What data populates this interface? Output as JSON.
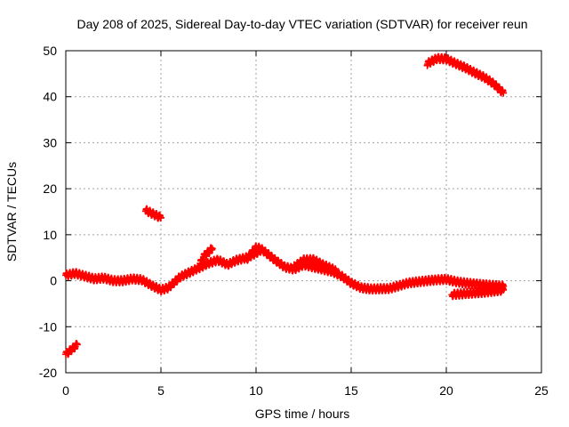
{
  "chart_data": {
    "type": "scatter",
    "title": "Day 208 of 2025, Sidereal Day-to-day VTEC variation (SDTVAR) for receiver reun",
    "xlabel": "GPS time / hours",
    "ylabel": "SDTVAR / TECUs",
    "xlim": [
      0,
      25
    ],
    "ylim": [
      -20,
      50
    ],
    "xticks": [
      0,
      5,
      10,
      15,
      20,
      25
    ],
    "yticks": [
      -20,
      -10,
      0,
      10,
      20,
      30,
      40,
      50
    ],
    "grid": true,
    "marker": "plus",
    "series_color": "#ff0000",
    "series": [
      {
        "name": "SDTVAR",
        "segments": [
          [
            [
              0.0,
              -16.0
            ],
            [
              0.2,
              -15.3
            ],
            [
              0.4,
              -14.6
            ],
            [
              0.6,
              -13.9
            ]
          ],
          [
            [
              0.0,
              1.2
            ],
            [
              0.5,
              1.6
            ],
            [
              1.0,
              1.0
            ],
            [
              1.5,
              0.4
            ],
            [
              2.0,
              0.6
            ],
            [
              2.5,
              0.0
            ],
            [
              3.0,
              0.0
            ],
            [
              3.5,
              0.4
            ],
            [
              4.0,
              0.2
            ],
            [
              4.5,
              -1.0
            ],
            [
              5.0,
              -2.0
            ],
            [
              5.4,
              -1.5
            ],
            [
              6.0,
              0.8
            ],
            [
              6.5,
              1.8
            ],
            [
              7.0,
              2.8
            ],
            [
              7.5,
              3.8
            ],
            [
              8.0,
              4.5
            ],
            [
              8.5,
              3.5
            ],
            [
              9.0,
              4.5
            ],
            [
              9.5,
              5.0
            ],
            [
              10.0,
              6.0
            ],
            [
              10.3,
              6.8
            ],
            [
              10.7,
              5.5
            ],
            [
              11.0,
              4.5
            ],
            [
              11.5,
              3.0
            ],
            [
              12.0,
              2.5
            ],
            [
              12.5,
              3.5
            ],
            [
              13.0,
              3.0
            ],
            [
              13.5,
              2.5
            ],
            [
              14.0,
              2.0
            ],
            [
              14.5,
              1.0
            ],
            [
              15.0,
              -0.5
            ],
            [
              15.5,
              -1.5
            ],
            [
              16.0,
              -1.8
            ],
            [
              17.0,
              -1.7
            ],
            [
              18.0,
              -0.5
            ],
            [
              19.0,
              0.0
            ],
            [
              19.5,
              0.2
            ],
            [
              20.0,
              0.3
            ],
            [
              20.5,
              -0.2
            ],
            [
              21.0,
              -0.5
            ],
            [
              22.0,
              -0.9
            ],
            [
              23.0,
              -1.2
            ]
          ],
          [
            [
              7.0,
              3.2
            ],
            [
              7.3,
              5.5
            ],
            [
              7.7,
              7.0
            ]
          ],
          [
            [
              9.5,
              4.6
            ],
            [
              10.0,
              7.2
            ],
            [
              10.2,
              7.0
            ]
          ],
          [
            [
              12.0,
              3.0
            ],
            [
              12.5,
              4.5
            ],
            [
              13.0,
              4.6
            ],
            [
              13.5,
              3.5
            ],
            [
              14.2,
              2.2
            ]
          ],
          [
            [
              20.3,
              -3.0
            ],
            [
              21.0,
              -2.8
            ],
            [
              22.0,
              -2.5
            ],
            [
              23.0,
              -2.0
            ]
          ],
          [
            [
              4.2,
              15.3
            ],
            [
              4.6,
              14.5
            ],
            [
              5.0,
              13.7
            ]
          ],
          [
            [
              19.0,
              47.2
            ],
            [
              19.5,
              48.3
            ],
            [
              20.0,
              48.2
            ],
            [
              20.5,
              47.2
            ],
            [
              21.0,
              46.3
            ],
            [
              21.5,
              45.2
            ],
            [
              22.0,
              44.2
            ],
            [
              22.5,
              42.8
            ],
            [
              23.0,
              40.8
            ]
          ]
        ]
      }
    ]
  }
}
